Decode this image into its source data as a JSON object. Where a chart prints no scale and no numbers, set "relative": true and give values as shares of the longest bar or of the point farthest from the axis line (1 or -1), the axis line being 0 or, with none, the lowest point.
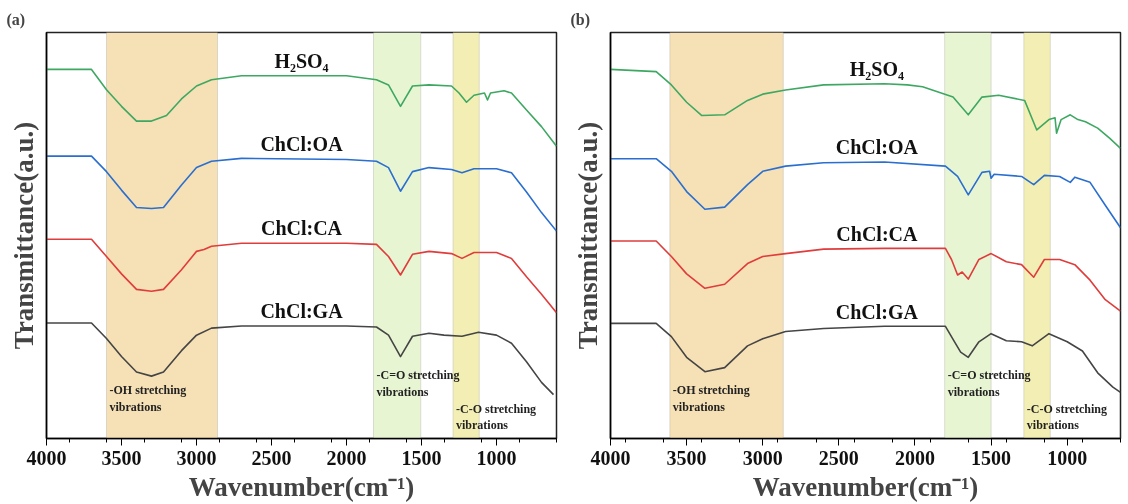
{
  "chart_data": [
    {
      "type": "line",
      "title": "(a)",
      "xlabel": "Wavenumber(cm⁻¹)",
      "ylabel": "Transmittance(a.u.)",
      "relative": true,
      "tick_labels": "x",
      "grid": false,
      "xlim": [
        4000,
        600
      ],
      "xticks": [
        4000,
        3500,
        3000,
        2500,
        2000,
        1500,
        1000
      ],
      "bands": [
        {
          "axis": "x",
          "from": 3600,
          "to": 2860,
          "label": "-OH stretching\nvibrations",
          "color": "#f6e0b5"
        },
        {
          "axis": "x",
          "from": 1820,
          "to": 1505,
          "label": "-C=O stretching\nvibrations",
          "color": "#e8f5d2"
        },
        {
          "axis": "x",
          "from": 1290,
          "to": 1115,
          "label": "-C-O stretching\nvibrations",
          "color": "#f3efb4"
        }
      ],
      "series": [
        {
          "name": "H₂SO₄",
          "color": "#3ea862",
          "x": [
            4000,
            3700,
            3600,
            3500,
            3400,
            3300,
            3200,
            3100,
            3000,
            2900,
            2700,
            2000,
            1800,
            1720,
            1640,
            1560,
            1450,
            1300,
            1250,
            1200,
            1150,
            1080,
            1060,
            1040,
            950,
            900,
            800,
            700,
            600
          ],
          "values": [
            1.0,
            1.0,
            0.945,
            0.9,
            0.86,
            0.86,
            0.875,
            0.92,
            0.955,
            0.972,
            0.983,
            0.983,
            0.972,
            0.958,
            0.9,
            0.955,
            0.958,
            0.955,
            0.936,
            0.911,
            0.93,
            0.936,
            0.917,
            0.936,
            0.942,
            0.936,
            0.89,
            0.845,
            0.792
          ]
        },
        {
          "name": "ChCl:OA",
          "color": "#2a6fd0",
          "x": [
            4000,
            3700,
            3600,
            3500,
            3400,
            3300,
            3220,
            3100,
            3000,
            2900,
            2700,
            2000,
            1800,
            1720,
            1640,
            1560,
            1450,
            1300,
            1230,
            1150,
            1000,
            900,
            800,
            700,
            600
          ],
          "values": [
            0.765,
            0.765,
            0.723,
            0.673,
            0.626,
            0.623,
            0.626,
            0.687,
            0.734,
            0.751,
            0.759,
            0.756,
            0.751,
            0.734,
            0.67,
            0.723,
            0.734,
            0.729,
            0.72,
            0.731,
            0.731,
            0.72,
            0.668,
            0.612,
            0.562
          ]
        },
        {
          "name": "ChCl:CA",
          "color": "#e03c3c",
          "x": [
            4000,
            3700,
            3600,
            3500,
            3400,
            3300,
            3220,
            3100,
            3000,
            2950,
            2900,
            2700,
            2000,
            1800,
            1720,
            1640,
            1560,
            1450,
            1300,
            1230,
            1150,
            1000,
            900,
            800,
            700,
            600
          ],
          "values": [
            0.54,
            0.54,
            0.493,
            0.446,
            0.404,
            0.399,
            0.404,
            0.457,
            0.507,
            0.512,
            0.521,
            0.529,
            0.529,
            0.526,
            0.493,
            0.443,
            0.499,
            0.507,
            0.501,
            0.488,
            0.504,
            0.504,
            0.488,
            0.438,
            0.391,
            0.341
          ]
        },
        {
          "name": "ChCl:GA",
          "color": "#454545",
          "x": [
            4000,
            3700,
            3600,
            3500,
            3400,
            3300,
            3220,
            3100,
            3000,
            2900,
            2700,
            2000,
            1800,
            1720,
            1640,
            1560,
            1450,
            1350,
            1230,
            1120,
            1000,
            900,
            800,
            700,
            620
          ],
          "values": [
            0.313,
            0.313,
            0.271,
            0.222,
            0.18,
            0.169,
            0.18,
            0.238,
            0.28,
            0.299,
            0.305,
            0.305,
            0.302,
            0.28,
            0.222,
            0.277,
            0.285,
            0.28,
            0.277,
            0.288,
            0.28,
            0.258,
            0.208,
            0.152,
            0.119
          ]
        }
      ]
    },
    {
      "type": "line",
      "title": "(b)",
      "xlabel": "Wavenumber(cm⁻¹)",
      "ylabel": "Transmittance(a.u.)",
      "relative": true,
      "tick_labels": "x",
      "grid": false,
      "xlim": [
        4000,
        650
      ],
      "xticks": [
        4000,
        3500,
        3000,
        2500,
        2000,
        1500,
        1000
      ],
      "bands": [
        {
          "axis": "x",
          "from": 3610,
          "to": 2865,
          "label": "-OH stretching\nvibrations",
          "color": "#f6e0b5"
        },
        {
          "axis": "x",
          "from": 1805,
          "to": 1500,
          "label": "-C=O stretching\nvibrations",
          "color": "#e8f5d2"
        },
        {
          "axis": "x",
          "from": 1285,
          "to": 1111,
          "label": "-C-O stretching\nvibrations",
          "color": "#f3efb4"
        }
      ],
      "series": [
        {
          "name": "H₂SO₄",
          "color": "#3ea862",
          "x": [
            4000,
            3700,
            3600,
            3500,
            3400,
            3250,
            3100,
            3000,
            2850,
            2600,
            2200,
            2050,
            1950,
            1750,
            1650,
            1560,
            1450,
            1280,
            1200,
            1120,
            1080,
            1070,
            1040,
            980,
            930,
            880,
            800,
            720,
            650
          ],
          "values": [
            1.0,
            0.994,
            0.958,
            0.911,
            0.875,
            0.877,
            0.916,
            0.933,
            0.944,
            0.958,
            0.961,
            0.958,
            0.953,
            0.925,
            0.877,
            0.925,
            0.93,
            0.916,
            0.836,
            0.864,
            0.869,
            0.827,
            0.864,
            0.877,
            0.864,
            0.858,
            0.841,
            0.813,
            0.786
          ]
        },
        {
          "name": "ChCl:OA",
          "color": "#2a6fd0",
          "x": [
            4000,
            3700,
            3600,
            3500,
            3380,
            3250,
            3100,
            3000,
            2850,
            2600,
            2200,
            1800,
            1720,
            1650,
            1560,
            1510,
            1500,
            1480,
            1300,
            1220,
            1150,
            1050,
            980,
            950,
            850,
            750,
            650
          ],
          "values": [
            0.758,
            0.758,
            0.724,
            0.669,
            0.621,
            0.627,
            0.688,
            0.724,
            0.738,
            0.747,
            0.749,
            0.738,
            0.71,
            0.66,
            0.721,
            0.724,
            0.705,
            0.716,
            0.71,
            0.688,
            0.713,
            0.71,
            0.694,
            0.708,
            0.694,
            0.632,
            0.571
          ]
        },
        {
          "name": "ChCl:CA",
          "color": "#e03c3c",
          "x": [
            4000,
            3700,
            3600,
            3500,
            3380,
            3250,
            3100,
            3000,
            2850,
            2600,
            2200,
            1800,
            1760,
            1720,
            1690,
            1650,
            1580,
            1500,
            1400,
            1300,
            1220,
            1150,
            1050,
            950,
            850,
            750,
            650
          ],
          "values": [
            0.535,
            0.535,
            0.493,
            0.446,
            0.407,
            0.418,
            0.474,
            0.493,
            0.501,
            0.513,
            0.515,
            0.515,
            0.485,
            0.443,
            0.451,
            0.432,
            0.485,
            0.501,
            0.479,
            0.471,
            0.437,
            0.485,
            0.485,
            0.471,
            0.429,
            0.376,
            0.345
          ]
        },
        {
          "name": "ChCl:GA",
          "color": "#454545",
          "x": [
            4000,
            3700,
            3600,
            3500,
            3380,
            3250,
            3100,
            3000,
            2850,
            2600,
            2200,
            1800,
            1740,
            1700,
            1650,
            1580,
            1500,
            1400,
            1300,
            1230,
            1120,
            1000,
            900,
            800,
            700,
            650
          ],
          "values": [
            0.312,
            0.312,
            0.276,
            0.22,
            0.181,
            0.192,
            0.251,
            0.27,
            0.29,
            0.298,
            0.304,
            0.304,
            0.262,
            0.234,
            0.22,
            0.262,
            0.284,
            0.265,
            0.262,
            0.251,
            0.284,
            0.262,
            0.237,
            0.178,
            0.139,
            0.125
          ]
        }
      ]
    }
  ]
}
